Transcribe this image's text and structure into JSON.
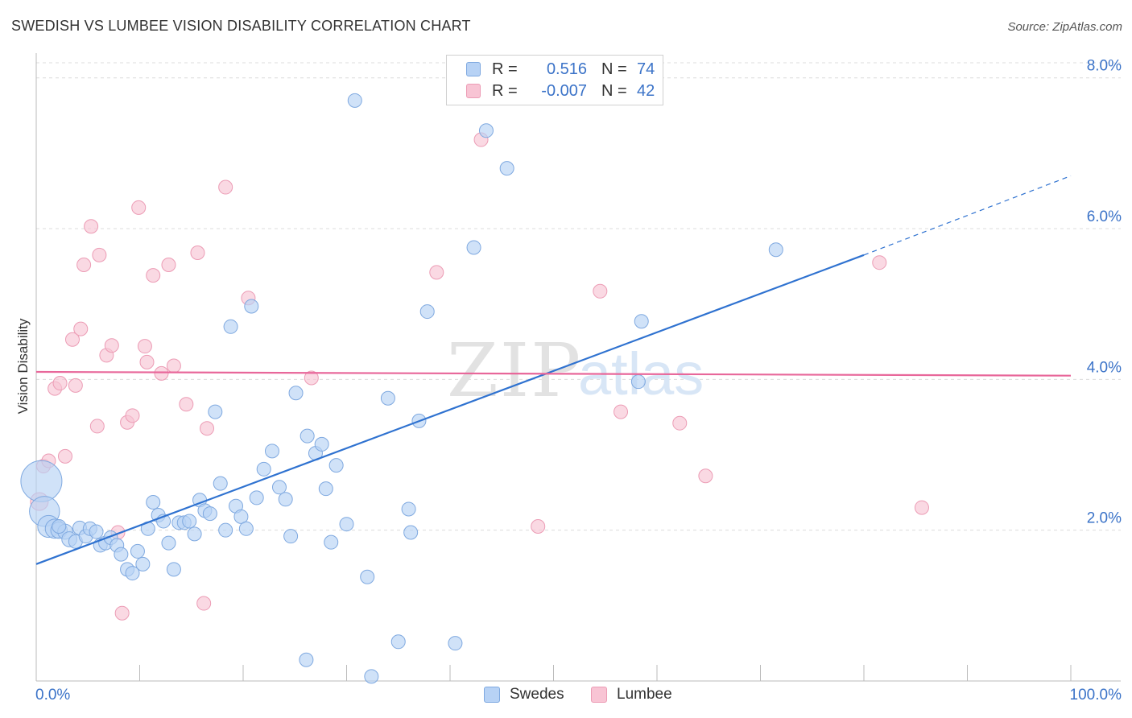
{
  "title": "SWEDISH VS LUMBEE VISION DISABILITY CORRELATION CHART",
  "source": "Source: ZipAtlas.com",
  "watermark": {
    "zip": "ZIP",
    "atlas": "atlas"
  },
  "colors": {
    "swedes_fill": "#b7d2f5",
    "swedes_stroke": "#7fa9e0",
    "swedes_line": "#2f72d0",
    "lumbee_fill": "#f8c4d4",
    "lumbee_stroke": "#ec9cb5",
    "lumbee_line": "#e8679a",
    "grid": "#dcdcdc",
    "tick_text": "#3b73c8"
  },
  "legend": {
    "rows": [
      {
        "r_label": "R =",
        "r_value": "0.516",
        "n_label": "N =",
        "n_value": "74"
      },
      {
        "r_label": "R =",
        "r_value": "-0.007",
        "n_label": "N =",
        "n_value": "42"
      }
    ]
  },
  "bottom_legend": [
    "Swedes",
    "Lumbee"
  ],
  "chart_data": {
    "type": "scatter",
    "title": "SWEDISH VS LUMBEE VISION DISABILITY CORRELATION CHART",
    "xlabel": "",
    "ylabel": "Vision Disability",
    "xlim": [
      0,
      100
    ],
    "ylim": [
      0,
      8.2
    ],
    "x_tick_labels": [
      "0.0%",
      "100.0%"
    ],
    "y_ticks": [
      2,
      4,
      6,
      8
    ],
    "y_tick_labels": [
      "2.0%",
      "4.0%",
      "6.0%",
      "8.0%"
    ],
    "grid": true,
    "legend_position": "top-center",
    "series": [
      {
        "name": "Swedes",
        "r": 0.516,
        "n": 74,
        "trend": {
          "x0": 0,
          "y0": 1.55,
          "x1": 80,
          "y1": 5.65,
          "dashed_to_x": 100,
          "dashed_to_y": 6.7
        },
        "points": [
          [
            0.5,
            2.65,
            3
          ],
          [
            0.8,
            2.25,
            2.2
          ],
          [
            1.2,
            2.05,
            1.6
          ],
          [
            1.8,
            2.02,
            1.4
          ],
          [
            2.2,
            2.0,
            1.2
          ],
          [
            2.8,
            1.98,
            1.1
          ],
          [
            3.2,
            1.88,
            1.1
          ],
          [
            3.8,
            1.85,
            1
          ],
          [
            4.2,
            2.03,
            1
          ],
          [
            4.8,
            1.92,
            1
          ],
          [
            5.2,
            2.02,
            1
          ],
          [
            5.8,
            1.98,
            1
          ],
          [
            6.2,
            1.8,
            1
          ],
          [
            6.7,
            1.83,
            1
          ],
          [
            7.2,
            1.9,
            1
          ],
          [
            7.8,
            1.8,
            1
          ],
          [
            8.2,
            1.68,
            1
          ],
          [
            8.8,
            1.48,
            1
          ],
          [
            9.3,
            1.43,
            1
          ],
          [
            9.8,
            1.72,
            1
          ],
          [
            10.3,
            1.55,
            1
          ],
          [
            10.8,
            2.02,
            1
          ],
          [
            11.3,
            2.37,
            1
          ],
          [
            11.8,
            2.2,
            1
          ],
          [
            12.3,
            2.12,
            1
          ],
          [
            12.8,
            1.83,
            1
          ],
          [
            13.3,
            1.48,
            1
          ],
          [
            13.8,
            2.1,
            1
          ],
          [
            14.3,
            2.1,
            1
          ],
          [
            14.8,
            2.12,
            1
          ],
          [
            15.3,
            1.95,
            1
          ],
          [
            15.8,
            2.4,
            1
          ],
          [
            16.3,
            2.26,
            1
          ],
          [
            16.8,
            2.22,
            1
          ],
          [
            17.3,
            3.57,
            1
          ],
          [
            17.8,
            2.62,
            1
          ],
          [
            18.3,
            2.0,
            1
          ],
          [
            18.8,
            4.7,
            1
          ],
          [
            19.3,
            2.32,
            1
          ],
          [
            19.8,
            2.18,
            1
          ],
          [
            20.3,
            2.02,
            1
          ],
          [
            20.8,
            4.97,
            1
          ],
          [
            21.3,
            2.43,
            1
          ],
          [
            22.0,
            2.81,
            1
          ],
          [
            22.8,
            3.05,
            1
          ],
          [
            23.5,
            2.57,
            1
          ],
          [
            24.1,
            2.41,
            1
          ],
          [
            24.6,
            1.92,
            1
          ],
          [
            25.1,
            3.82,
            1
          ],
          [
            26.1,
            0.28,
            1
          ],
          [
            26.2,
            3.25,
            1
          ],
          [
            27.0,
            3.02,
            1
          ],
          [
            27.6,
            3.14,
            1
          ],
          [
            28.0,
            2.55,
            1
          ],
          [
            28.5,
            1.84,
            1
          ],
          [
            29.0,
            2.86,
            1
          ],
          [
            30.0,
            2.08,
            1
          ],
          [
            30.8,
            7.7,
            1
          ],
          [
            32.0,
            1.38,
            1
          ],
          [
            32.4,
            0.06,
            1
          ],
          [
            34.0,
            3.75,
            1
          ],
          [
            35.0,
            0.52,
            1
          ],
          [
            36.0,
            2.28,
            1
          ],
          [
            36.2,
            1.97,
            1
          ],
          [
            37.0,
            3.45,
            1
          ],
          [
            37.8,
            4.9,
            1
          ],
          [
            40.5,
            0.5,
            1
          ],
          [
            42.3,
            5.75,
            1
          ],
          [
            43.5,
            7.3,
            1
          ],
          [
            45.5,
            6.8,
            1
          ],
          [
            58.2,
            3.97,
            1
          ],
          [
            58.5,
            4.77,
            1
          ],
          [
            71.5,
            5.72,
            1
          ],
          [
            2.2,
            2.05,
            1
          ]
        ]
      },
      {
        "name": "Lumbee",
        "r": -0.007,
        "n": 42,
        "trend": {
          "x0": 0,
          "y0": 4.1,
          "x1": 100,
          "y1": 4.05
        },
        "points": [
          [
            0.3,
            2.38,
            1.3
          ],
          [
            0.7,
            2.85,
            1
          ],
          [
            1.2,
            2.92,
            1
          ],
          [
            1.8,
            3.88,
            1
          ],
          [
            2.3,
            3.95,
            1
          ],
          [
            2.8,
            2.98,
            1
          ],
          [
            3.5,
            4.53,
            1
          ],
          [
            3.8,
            3.92,
            1
          ],
          [
            4.3,
            4.67,
            1
          ],
          [
            4.6,
            5.52,
            1
          ],
          [
            5.3,
            6.03,
            1
          ],
          [
            5.9,
            3.38,
            1
          ],
          [
            6.1,
            5.65,
            1
          ],
          [
            6.8,
            4.32,
            1
          ],
          [
            7.3,
            4.45,
            1
          ],
          [
            7.9,
            1.97,
            1
          ],
          [
            8.3,
            0.9,
            1
          ],
          [
            8.8,
            3.43,
            1
          ],
          [
            9.3,
            3.52,
            1
          ],
          [
            9.9,
            6.28,
            1
          ],
          [
            10.5,
            4.44,
            1
          ],
          [
            10.7,
            4.23,
            1
          ],
          [
            11.3,
            5.38,
            1
          ],
          [
            12.1,
            4.08,
            1
          ],
          [
            12.8,
            5.52,
            1
          ],
          [
            13.3,
            4.18,
            1
          ],
          [
            14.5,
            3.67,
            1
          ],
          [
            15.6,
            5.68,
            1
          ],
          [
            16.2,
            1.03,
            1
          ],
          [
            16.5,
            3.35,
            1
          ],
          [
            18.3,
            6.55,
            1
          ],
          [
            20.5,
            5.08,
            1
          ],
          [
            26.6,
            4.02,
            1
          ],
          [
            38.7,
            5.42,
            1
          ],
          [
            43.0,
            7.18,
            1
          ],
          [
            48.5,
            2.05,
            1
          ],
          [
            54.5,
            5.17,
            1
          ],
          [
            56.5,
            3.57,
            1
          ],
          [
            62.2,
            3.42,
            1
          ],
          [
            64.7,
            2.72,
            1
          ],
          [
            81.5,
            5.55,
            1
          ],
          [
            85.6,
            2.3,
            1
          ]
        ]
      }
    ]
  }
}
